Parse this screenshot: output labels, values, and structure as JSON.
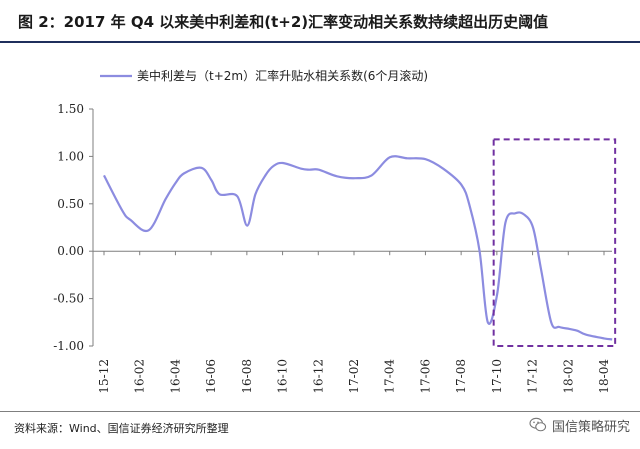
{
  "figure": {
    "title": "图 2：2017 年 Q4 以来美中利差和(t+2)汇率变动相关系数持续超出历史阈值",
    "source": "资料来源：Wind、国信证券经济研究所整理",
    "watermark": "国信策略研究",
    "watermark_icon": "wechat-icon"
  },
  "colors": {
    "line": "#8c8ce0",
    "highlight_box": "#7030a0",
    "axis": "#7f7f7f",
    "rule": "#1f2f5c"
  },
  "chart_data": {
    "type": "line",
    "legend_position": "top",
    "grid": false,
    "ylim": [
      -1.0,
      1.5
    ],
    "yticks": [
      "1.50",
      "1.00",
      "0.50",
      "0.00",
      "-0.50",
      "-1.00"
    ],
    "ytick_values": [
      1.5,
      1.0,
      0.5,
      0.0,
      -0.5,
      -1.0
    ],
    "xticks": [
      "15-12",
      "16-02",
      "16-04",
      "16-06",
      "16-08",
      "16-10",
      "16-12",
      "17-02",
      "17-04",
      "17-06",
      "17-08",
      "17-10",
      "17-12",
      "18-02",
      "18-04"
    ],
    "series": [
      {
        "name": "美中利差与（t+2m）汇率升贴水相关系数(6个月滚动)",
        "x": [
          "2015-12-01",
          "2016-01-01",
          "2016-01-15",
          "2016-02-15",
          "2016-03-15",
          "2016-04-01",
          "2016-04-15",
          "2016-05-15",
          "2016-06-01",
          "2016-06-15",
          "2016-07-15",
          "2016-08-01",
          "2016-08-15",
          "2016-09-01",
          "2016-09-15",
          "2016-10-01",
          "2016-11-01",
          "2016-11-15",
          "2016-12-01",
          "2017-01-01",
          "2017-02-01",
          "2017-03-01",
          "2017-04-01",
          "2017-05-01",
          "2017-06-01",
          "2017-07-01",
          "2017-08-01",
          "2017-08-15",
          "2017-09-01",
          "2017-09-15",
          "2017-10-01",
          "2017-10-15",
          "2017-11-01",
          "2017-11-15",
          "2017-12-01",
          "2017-12-15",
          "2018-01-01",
          "2018-01-15",
          "2018-02-01",
          "2018-02-15",
          "2018-03-01",
          "2018-04-01",
          "2018-04-15"
        ],
        "y": [
          0.8,
          0.43,
          0.33,
          0.22,
          0.55,
          0.72,
          0.82,
          0.88,
          0.75,
          0.6,
          0.58,
          0.27,
          0.6,
          0.8,
          0.9,
          0.93,
          0.87,
          0.86,
          0.86,
          0.79,
          0.77,
          0.8,
          0.99,
          0.98,
          0.97,
          0.87,
          0.7,
          0.48,
          0.0,
          -0.75,
          -0.45,
          0.3,
          0.4,
          0.39,
          0.25,
          -0.2,
          -0.75,
          -0.8,
          -0.82,
          -0.84,
          -0.88,
          -0.92,
          -0.93
        ]
      }
    ],
    "highlight_box": {
      "x_start": "2017-09-25",
      "x_end": "2018-04-20",
      "y_bottom": -1.0,
      "y_top": 1.18
    }
  }
}
